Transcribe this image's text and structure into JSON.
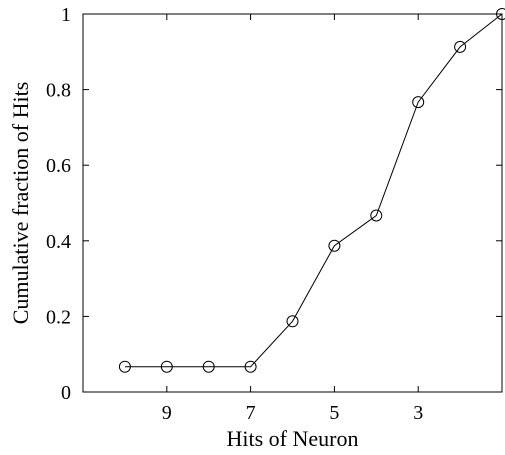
{
  "chart_data": {
    "type": "line",
    "title": "",
    "xlabel": "Hits of Neuron",
    "ylabel": "Cumulative fraction of Hits",
    "x_reversed": true,
    "xlim": [
      11,
      1
    ],
    "ylim": [
      0,
      1
    ],
    "x_ticks": [
      9,
      7,
      5,
      3
    ],
    "x_tick_labels": [
      "9",
      "7",
      "5",
      "3"
    ],
    "y_ticks": [
      0,
      0.2,
      0.4,
      0.6,
      0.8,
      1
    ],
    "y_tick_labels": [
      "0",
      "0.2",
      "0.4",
      "0.6",
      "0.8",
      "1"
    ],
    "grid": false,
    "legend": "none",
    "series": [
      {
        "marker": "circle",
        "color": "#000000",
        "x": [
          10,
          9,
          8,
          7,
          6,
          5,
          4,
          3,
          2,
          1
        ],
        "y": [
          0.067,
          0.067,
          0.067,
          0.067,
          0.187,
          0.387,
          0.467,
          0.767,
          0.913,
          1.0
        ]
      }
    ]
  }
}
